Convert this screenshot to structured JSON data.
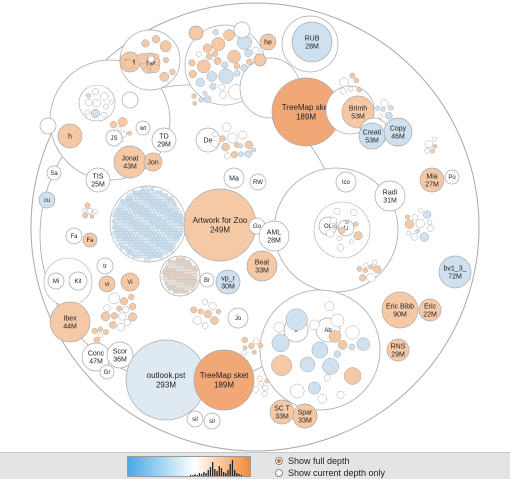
{
  "options": {
    "full_depth": "Show full depth",
    "current_depth": "Show current depth only",
    "selected": "full_depth"
  },
  "colors": {
    "orange_fill": "#f6c9a6",
    "orange_dark": "#f0a877",
    "blue_fill": "#cfe0ee",
    "outline": "#a9a9a9",
    "root_fill": "#ffffff",
    "radio_selected": "#d9702a",
    "histogram_blue": "#4aa9e6",
    "histogram_orange": "#f08a3a"
  },
  "labels": {
    "artwork": [
      "Artwork for Zoo",
      "249M"
    ],
    "outlook": [
      "outlook.pst",
      "293M"
    ],
    "treemap_top": [
      "TreeMap sket",
      "189M"
    ],
    "treemap_bottom": [
      "TreeMap sket",
      "189M"
    ],
    "rub": [
      "RUB",
      "28M"
    ],
    "brimh": [
      "Brimh",
      "53M"
    ],
    "creati": [
      "Creati",
      "53M"
    ],
    "copy": [
      "Copy",
      "46M"
    ],
    "mia": [
      "Mia",
      "27M"
    ],
    "po": [
      "Po"
    ],
    "radi": [
      "Radi",
      "31M"
    ],
    "ico": [
      "Ico"
    ],
    "bv1": [
      "bv1_3_",
      "72M"
    ],
    "eric_bibb": [
      "Eric Bibb",
      "90M"
    ],
    "eric": [
      "Eric",
      "22M"
    ],
    "rns": [
      "RNS",
      "29M"
    ],
    "ibex": [
      "Ibex",
      "44M"
    ],
    "conc": [
      "Conc",
      "47M"
    ],
    "scor": [
      "Scor",
      "36M"
    ],
    "beat": [
      "Beat",
      "33M"
    ],
    "aml": [
      "AML",
      "28M"
    ],
    "vp": [
      "vp_r",
      "30M"
    ],
    "jonat": [
      "Jonat",
      "43M"
    ],
    "jon": [
      "Jon"
    ],
    "td": [
      "TD",
      "29M"
    ],
    "tis": [
      "TIS",
      "25M"
    ],
    "sc": [
      "SC T",
      "33M"
    ],
    "spar": [
      "Spar",
      "33M"
    ],
    "tm1": [
      "TM"
    ],
    "tm2": [
      "TM"
    ],
    "mi": [
      "Mi"
    ],
    "kit": [
      "Kit"
    ],
    "fa1": [
      "Fa"
    ],
    "fa2": [
      "Fa"
    ],
    "gr": [
      "Gr"
    ],
    "sil1": [
      "sil"
    ],
    "sil2": [
      "sil"
    ],
    "wt": [
      "wt"
    ],
    "js": [
      "JS"
    ],
    "rw": [
      "RW"
    ],
    "ma": [
      "Ma"
    ],
    "go": [
      "Go"
    ],
    "de": [
      "De"
    ],
    "cu": [
      "cu"
    ],
    "sa": [
      "Sa"
    ],
    "ol": [
      "OL"
    ],
    "li": [
      "Li"
    ],
    "it": [
      "It"
    ],
    "ab": [
      "Ab"
    ],
    "vi1": [
      "vi"
    ],
    "vi2": [
      "Vi"
    ],
    "jo": [
      "Jo"
    ],
    "hh": [
      "h"
    ],
    "he": [
      "he"
    ],
    "br": [
      "Br"
    ],
    "tr": [
      "tr"
    ]
  }
}
